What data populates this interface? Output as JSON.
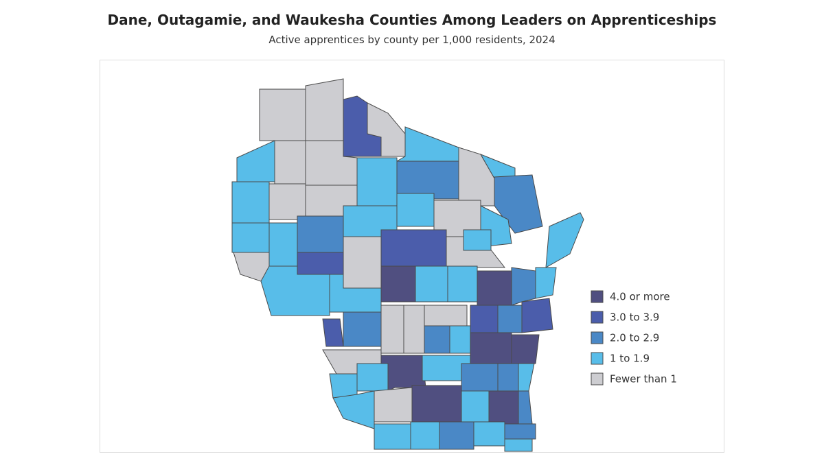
{
  "title": "Dane, Outagamie, and Waukesha Counties Among Leaders on Apprenticeships",
  "subtitle": "Active apprentices by county per 1,000 residents, 2024",
  "legend": [
    {
      "label": "4.0 or more",
      "color": "#504f80"
    },
    {
      "label": "3.0 to 3.9",
      "color": "#4b5dab"
    },
    {
      "label": "2.0 to 2.9",
      "color": "#4a88c6"
    },
    {
      "label": "1 to 1.9",
      "color": "#58bde9"
    },
    {
      "label": "Fewer than 1",
      "color": "#cdcdd1"
    }
  ]
}
